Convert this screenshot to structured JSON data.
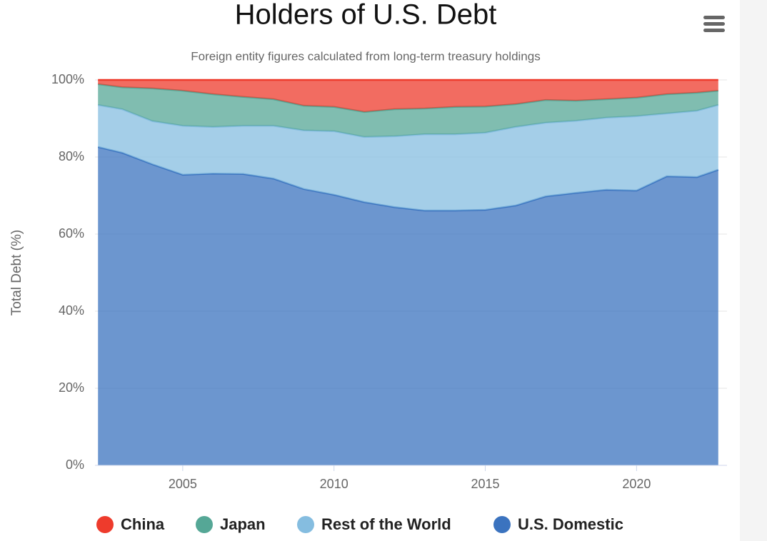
{
  "chart_data": {
    "type": "stacked_area",
    "title": "Holders of U.S. Debt",
    "subtitle": "Foreign entity figures calculated from long-term treasury holdings",
    "y_label": "Total Debt (%)",
    "x": [
      2002.2,
      2003,
      2004,
      2005,
      2006,
      2007,
      2008,
      2009,
      2010,
      2011,
      2012,
      2013,
      2014,
      2015,
      2016,
      2017,
      2018,
      2019,
      2020,
      2021,
      2022,
      2022.7
    ],
    "series": [
      {
        "name": "China",
        "color": "#ee3b2c",
        "values": [
          1.1,
          1.9,
          2.2,
          2.8,
          3.7,
          4.4,
          5.0,
          6.7,
          7.0,
          8.3,
          7.6,
          7.4,
          7.0,
          6.9,
          6.3,
          5.2,
          5.4,
          5.0,
          4.6,
          3.7,
          3.3,
          2.8
        ]
      },
      {
        "name": "Japan",
        "color": "#55a796",
        "values": [
          5.4,
          5.7,
          8.5,
          9.1,
          8.5,
          7.5,
          6.9,
          6.4,
          6.3,
          6.5,
          7.0,
          6.7,
          7.1,
          6.8,
          5.9,
          5.9,
          5.2,
          4.8,
          4.8,
          5.0,
          4.7,
          3.7
        ]
      },
      {
        "name": "Rest of the World",
        "color": "#85bde0",
        "values": [
          10.9,
          11.3,
          11.2,
          12.7,
          12.1,
          12.5,
          13.7,
          15.2,
          16.5,
          16.9,
          18.4,
          19.8,
          19.8,
          20.0,
          20.4,
          19.1,
          18.7,
          18.7,
          19.3,
          16.3,
          17.2,
          16.8
        ]
      },
      {
        "name": "U.S. Domestic",
        "color": "#3b73bf",
        "values": [
          82.6,
          81.1,
          78.1,
          75.4,
          75.7,
          75.6,
          74.4,
          71.7,
          70.2,
          68.3,
          67.0,
          66.1,
          66.1,
          66.3,
          67.4,
          69.8,
          70.7,
          71.5,
          71.3,
          75.0,
          74.8,
          76.7
        ]
      }
    ],
    "xlim": [
      2002.1,
      2022.8
    ],
    "xticks": [
      2005,
      2010,
      2015,
      2020
    ],
    "ylim": [
      0,
      100
    ],
    "yticks": [
      {
        "value": 0,
        "label": "0%"
      },
      {
        "value": 20,
        "label": "20%"
      },
      {
        "value": 40,
        "label": "40%"
      },
      {
        "value": 60,
        "label": "60%"
      },
      {
        "value": 80,
        "label": "80%"
      },
      {
        "value": 100,
        "label": "100%"
      }
    ],
    "grid": true
  }
}
